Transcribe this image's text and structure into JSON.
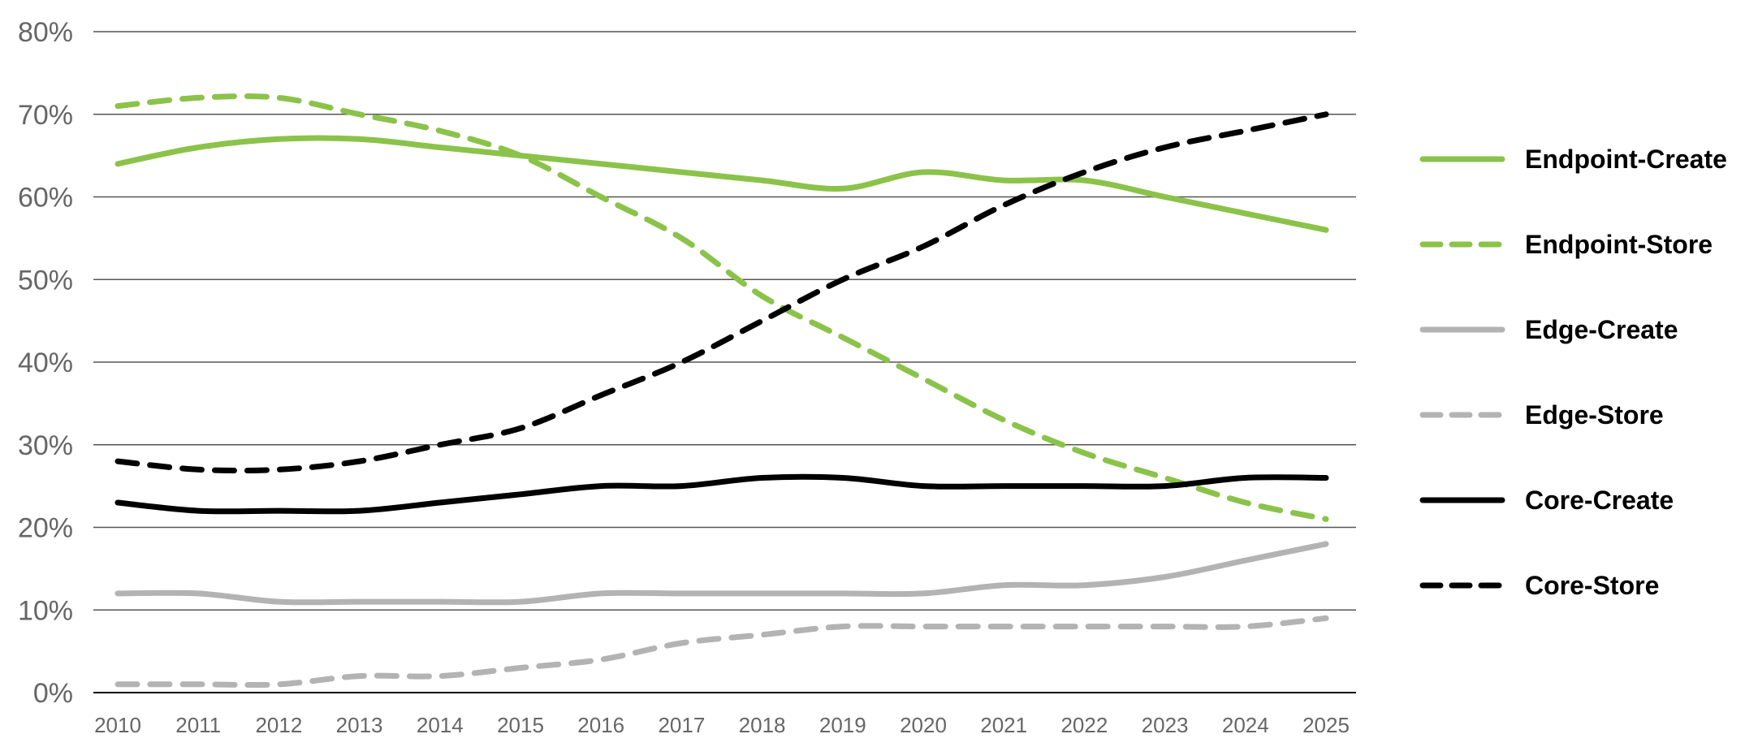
{
  "chart_data": {
    "type": "line",
    "title": "",
    "xlabel": "",
    "ylabel": "",
    "x": [
      "2010",
      "2011",
      "2012",
      "2013",
      "2014",
      "2015",
      "2016",
      "2017",
      "2018",
      "2019",
      "2020",
      "2021",
      "2022",
      "2023",
      "2024",
      "2025"
    ],
    "ylim": [
      0,
      80
    ],
    "yticks": [
      0,
      10,
      20,
      30,
      40,
      50,
      60,
      70,
      80
    ],
    "ytick_labels": [
      "0%",
      "10%",
      "20%",
      "30%",
      "40%",
      "50%",
      "60%",
      "70%",
      "80%"
    ],
    "grid": "horizontal",
    "legend_position": "right",
    "series": [
      {
        "name": "Endpoint-Create",
        "color": "#8bc34a",
        "style": "solid",
        "values": [
          64,
          66,
          67,
          67,
          66,
          65,
          64,
          63,
          62,
          61,
          63,
          62,
          62,
          60,
          58,
          56
        ]
      },
      {
        "name": "Endpoint-Store",
        "color": "#8bc34a",
        "style": "dashed",
        "values": [
          71,
          72,
          72,
          70,
          68,
          65,
          60,
          55,
          48,
          43,
          38,
          33,
          29,
          26,
          23,
          21
        ]
      },
      {
        "name": "Edge-Create",
        "color": "#b3b3b3",
        "style": "solid",
        "values": [
          12,
          12,
          11,
          11,
          11,
          11,
          12,
          12,
          12,
          12,
          12,
          13,
          13,
          14,
          16,
          18
        ]
      },
      {
        "name": "Edge-Store",
        "color": "#b3b3b3",
        "style": "dashed",
        "values": [
          1,
          1,
          1,
          2,
          2,
          3,
          4,
          6,
          7,
          8,
          8,
          8,
          8,
          8,
          8,
          9
        ]
      },
      {
        "name": "Core-Create",
        "color": "#000000",
        "style": "solid",
        "values": [
          23,
          22,
          22,
          22,
          23,
          24,
          25,
          25,
          26,
          26,
          25,
          25,
          25,
          25,
          26,
          26
        ]
      },
      {
        "name": "Core-Store",
        "color": "#000000",
        "style": "dashed",
        "values": [
          28,
          27,
          27,
          28,
          30,
          32,
          36,
          40,
          45,
          50,
          54,
          59,
          63,
          66,
          68,
          70
        ]
      }
    ]
  }
}
